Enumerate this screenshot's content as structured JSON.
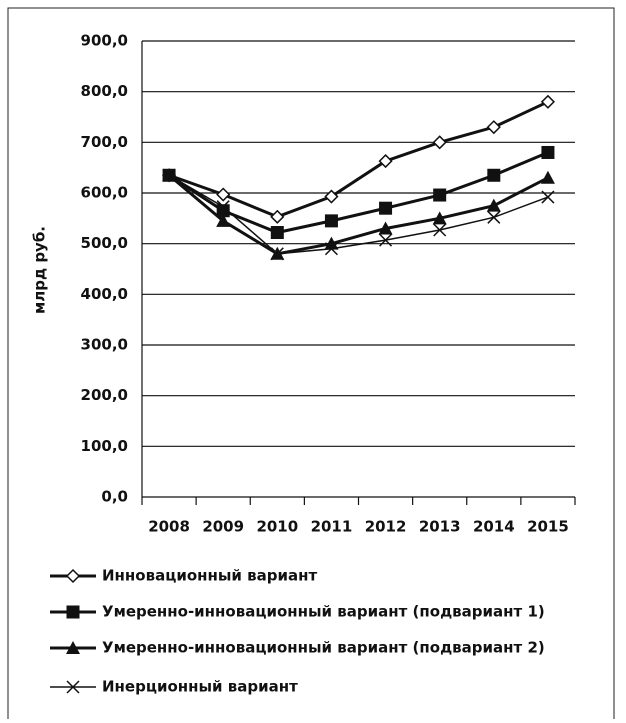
{
  "chart_data": {
    "type": "line",
    "y_label": "млрд  руб.",
    "categories": [
      "2008",
      "2009",
      "2010",
      "2011",
      "2012",
      "2013",
      "2014",
      "2015"
    ],
    "ylim": [
      0,
      900
    ],
    "yticks": [
      {
        "value": 0,
        "label": "0,0"
      },
      {
        "value": 100,
        "label": "100,0"
      },
      {
        "value": 200,
        "label": "200,0"
      },
      {
        "value": 300,
        "label": "300,0"
      },
      {
        "value": 400,
        "label": "400,0"
      },
      {
        "value": 500,
        "label": "500,0"
      },
      {
        "value": 600,
        "label": "600,0"
      },
      {
        "value": 700,
        "label": "700,0"
      },
      {
        "value": 800,
        "label": "800,0"
      },
      {
        "value": 900,
        "label": "900,0"
      }
    ],
    "grid": true,
    "legend": "bottom",
    "series": [
      {
        "name": "Инновационный вариант",
        "color": "#111111",
        "marker": "diamond",
        "line_width": 3,
        "values": [
          635,
          597,
          553,
          593,
          663,
          700,
          730,
          780
        ]
      },
      {
        "name": "Умеренно-инновационный вариант (подвариант  1)",
        "color": "#111111",
        "marker": "square",
        "line_width": 3,
        "values": [
          635,
          565,
          522,
          545,
          570,
          596,
          635,
          680
        ]
      },
      {
        "name": "Умеренно-инновационный вариант (подвариант  2)",
        "color": "#111111",
        "marker": "triangle",
        "line_width": 3,
        "values": [
          635,
          545,
          480,
          500,
          530,
          550,
          575,
          630
        ]
      },
      {
        "name": "Инерционный вариант",
        "color": "#111111",
        "marker": "x",
        "line_width": 1.5,
        "values": [
          635,
          573,
          480,
          490,
          507,
          527,
          552,
          592
        ]
      }
    ]
  }
}
